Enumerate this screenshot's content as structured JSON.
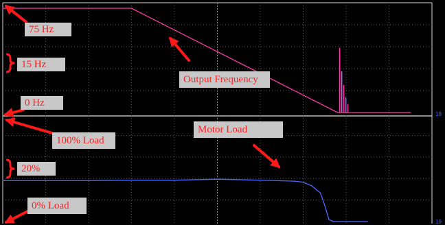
{
  "chart_data": [
    {
      "type": "line",
      "title": "",
      "ylabel": "",
      "annotations": [
        "75 Hz",
        "15 Hz",
        "0 Hz",
        "Output Frequency"
      ],
      "scale_label": "15 Hz",
      "ylim": [
        0,
        75
      ],
      "grid": true,
      "series": [
        {
          "name": "Output Frequency",
          "color": "#ff3aa8",
          "points": [
            [
              0.0,
              75
            ],
            [
              3.0,
              75
            ],
            [
              7.8,
              0
            ],
            [
              9.5,
              0
            ]
          ]
        }
      ],
      "spike_x": 7.85,
      "channel_marker": "18"
    },
    {
      "type": "line",
      "title": "",
      "ylabel": "",
      "annotations": [
        "100% Load",
        "20%",
        "0% Load",
        "Motor Load"
      ],
      "scale_label": "20%",
      "ylim": [
        0,
        100
      ],
      "grid": true,
      "series": [
        {
          "name": "Motor Load",
          "color": "#4a6cff",
          "points": [
            [
              0.0,
              40
            ],
            [
              1.0,
              40
            ],
            [
              2.0,
              40
            ],
            [
              3.0,
              40.5
            ],
            [
              4.0,
              40.5
            ],
            [
              5.0,
              41.5
            ],
            [
              6.0,
              40.5
            ],
            [
              6.8,
              39.5
            ],
            [
              7.0,
              38.5
            ],
            [
              7.2,
              35
            ],
            [
              7.4,
              28
            ],
            [
              7.5,
              16
            ],
            [
              7.6,
              2
            ],
            [
              7.7,
              0
            ],
            [
              8.5,
              0
            ]
          ]
        }
      ],
      "channel_marker": "19"
    }
  ],
  "colors": {
    "background": "#000000",
    "grid": "#5a5a5a",
    "label_box": "#c8c8c8",
    "label_text": "#ff2020",
    "arrow": "#ff1a1a"
  }
}
